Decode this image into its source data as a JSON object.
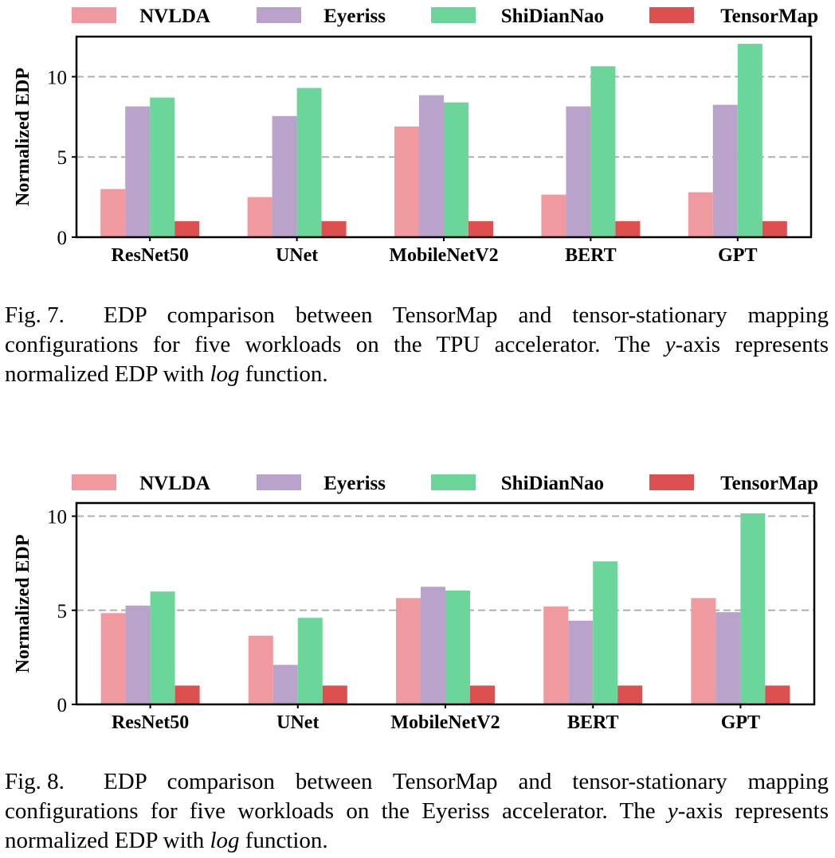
{
  "chart_data": [
    {
      "type": "bar",
      "ylabel": "Normalized EDP",
      "ylim": [
        0,
        12.5
      ],
      "yticks": [
        0,
        5,
        10
      ],
      "grid": "horizontal dashed",
      "legend_position": "top",
      "categories": [
        "ResNet50",
        "UNet",
        "MobileNetV2",
        "BERT",
        "GPT"
      ],
      "series": [
        {
          "name": "NVLDA",
          "color": "#f09aa0",
          "values": [
            3.0,
            2.5,
            6.9,
            2.65,
            2.8
          ]
        },
        {
          "name": "Eyeriss",
          "color": "#b9a3cb",
          "values": [
            8.15,
            7.55,
            8.85,
            8.15,
            8.25
          ]
        },
        {
          "name": "ShiDianNao",
          "color": "#6cd69a",
          "values": [
            8.7,
            9.3,
            8.4,
            10.65,
            12.05
          ]
        },
        {
          "name": "TensorMap",
          "color": "#dd5050",
          "values": [
            1.0,
            1.0,
            1.0,
            1.0,
            1.0
          ]
        }
      ]
    },
    {
      "type": "bar",
      "ylabel": "Normalized EDP",
      "ylim": [
        0,
        10.7
      ],
      "yticks": [
        0,
        5,
        10
      ],
      "grid": "horizontal dashed",
      "legend_position": "top",
      "categories": [
        "ResNet50",
        "UNet",
        "MobileNetV2",
        "BERT",
        "GPT"
      ],
      "series": [
        {
          "name": "NVLDA",
          "color": "#f09aa0",
          "values": [
            4.85,
            3.65,
            5.65,
            5.2,
            5.65
          ]
        },
        {
          "name": "Eyeriss",
          "color": "#b9a3cb",
          "values": [
            5.25,
            2.1,
            6.25,
            4.45,
            4.9
          ]
        },
        {
          "name": "ShiDianNao",
          "color": "#6cd69a",
          "values": [
            6.0,
            4.6,
            6.05,
            7.6,
            10.15
          ]
        },
        {
          "name": "TensorMap",
          "color": "#dd5050",
          "values": [
            1.0,
            1.0,
            1.0,
            1.0,
            1.0
          ]
        }
      ]
    }
  ],
  "captions": [
    {
      "label": "Fig. 7.",
      "text_before": "EDP comparison between TensorMap and tensor-stationary mapping configurations for five workloads on the TPU accelerator. The ",
      "var": "y",
      "text_mid": "-axis represents normalized EDP with ",
      "func": "log",
      "text_after": " function."
    },
    {
      "label": "Fig. 8.",
      "text_before": "EDP comparison between TensorMap and tensor-stationary mapping configurations for five workloads on the Eyeriss accelerator. The ",
      "var": "y",
      "text_mid": "-axis represents normalized EDP with ",
      "func": "log",
      "text_after": " function."
    }
  ]
}
